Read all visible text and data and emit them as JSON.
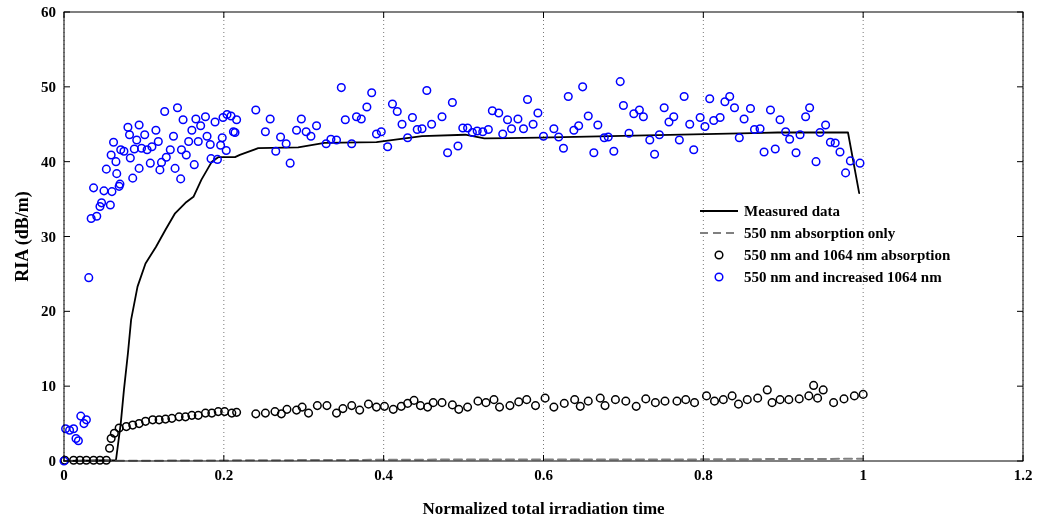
{
  "chart_data": {
    "type": "line",
    "xlabel": "Normalized total irradiation time",
    "ylabel": "RIA (dB/m)",
    "xlim": [
      0,
      1.2
    ],
    "xticks": [
      0,
      0.2,
      0.4,
      0.6,
      0.8,
      1,
      1.2
    ],
    "ylim": [
      0,
      60
    ],
    "yticks": [
      0,
      10,
      20,
      30,
      40,
      50,
      60
    ],
    "grid": "x",
    "legend": "right",
    "series": [
      {
        "name": "Measured data",
        "color": "#000000",
        "line_style": "solid",
        "marker": "none",
        "x": [
          0,
          0.065,
          0.071,
          0.075,
          0.08,
          0.084,
          0.092,
          0.102,
          0.115,
          0.127,
          0.139,
          0.152,
          0.162,
          0.172,
          0.185,
          0.193,
          0.214,
          0.22,
          0.243,
          0.293,
          0.326,
          0.391,
          0.448,
          0.502,
          0.526,
          0.595,
          0.893,
          0.981,
          0.995
        ],
        "values": [
          0,
          0.1,
          5,
          9.5,
          14.4,
          18.9,
          23.3,
          26.4,
          28.6,
          30.9,
          33.1,
          34.5,
          35.3,
          37.6,
          40,
          40.6,
          40.6,
          40.9,
          41.8,
          41.9,
          42.5,
          42.6,
          43.4,
          43.6,
          43.1,
          43.2,
          43.9,
          43.9,
          35.8
        ]
      },
      {
        "name": "550 nm absorption only",
        "type": "line",
        "color": "#808080",
        "line_style": "dashed",
        "marker": "none",
        "x": [
          0,
          0.25,
          0.5,
          0.75,
          1
        ],
        "values": [
          0,
          0.1,
          0.2,
          0.2,
          0.3
        ]
      },
      {
        "name": "550 nm and 1064 nm absorption",
        "type": "scatter",
        "color": "#000000",
        "marker": "circle",
        "x": [
          0.001,
          0.012,
          0.02,
          0.028,
          0.037,
          0.045,
          0.053,
          0.057,
          0.059,
          0.063,
          0.069,
          0.078,
          0.086,
          0.094,
          0.102,
          0.111,
          0.119,
          0.127,
          0.135,
          0.144,
          0.152,
          0.16,
          0.168,
          0.177,
          0.185,
          0.193,
          0.201,
          0.21,
          0.216,
          0.24,
          0.252,
          0.264,
          0.272,
          0.279,
          0.291,
          0.298,
          0.306,
          0.317,
          0.329,
          0.341,
          0.349,
          0.36,
          0.37,
          0.381,
          0.391,
          0.401,
          0.412,
          0.422,
          0.43,
          0.438,
          0.446,
          0.455,
          0.462,
          0.473,
          0.486,
          0.494,
          0.505,
          0.518,
          0.528,
          0.538,
          0.545,
          0.558,
          0.569,
          0.579,
          0.59,
          0.602,
          0.613,
          0.626,
          0.639,
          0.646,
          0.656,
          0.671,
          0.677,
          0.69,
          0.703,
          0.716,
          0.728,
          0.74,
          0.752,
          0.767,
          0.778,
          0.789,
          0.804,
          0.814,
          0.825,
          0.836,
          0.844,
          0.855,
          0.868,
          0.88,
          0.886,
          0.896,
          0.907,
          0.92,
          0.932,
          0.938,
          0.943,
          0.95,
          0.963,
          0.976,
          0.989,
          1
        ],
        "values": [
          0.1,
          0.1,
          0.1,
          0.1,
          0.1,
          0.1,
          0.1,
          1.7,
          3,
          3.7,
          4.4,
          4.6,
          4.8,
          5,
          5.3,
          5.5,
          5.5,
          5.6,
          5.7,
          5.9,
          5.9,
          6.1,
          6.1,
          6.4,
          6.4,
          6.6,
          6.6,
          6.4,
          6.5,
          6.3,
          6.4,
          6.6,
          6.3,
          6.9,
          6.8,
          7.2,
          6.4,
          7.4,
          7.4,
          6.4,
          7,
          7.4,
          6.8,
          7.6,
          7.2,
          7.3,
          6.9,
          7.3,
          7.7,
          8.1,
          7.4,
          7.2,
          7.8,
          7.8,
          7.5,
          6.9,
          7.2,
          8,
          7.8,
          8.2,
          7.2,
          7.4,
          7.9,
          8.2,
          7.4,
          8.4,
          7.2,
          7.7,
          8.2,
          7.3,
          8,
          8.4,
          7.4,
          8.2,
          8,
          7.3,
          8.3,
          7.8,
          8,
          8,
          8.2,
          7.8,
          8.7,
          8,
          8.2,
          8.7,
          7.6,
          8.2,
          8.4,
          9.5,
          7.8,
          8.2,
          8.2,
          8.3,
          8.7,
          10.1,
          8.4,
          9.5,
          7.8,
          8.3,
          8.7,
          8.9
        ]
      },
      {
        "name": "550 nm and increased 1064 nm",
        "type": "scatter",
        "color": "#0000ff",
        "marker": "circle",
        "x": [
          0,
          0.002,
          0.007,
          0.012,
          0.015,
          0.018,
          0.021,
          0.025,
          0.028,
          0.031,
          0.034,
          0.037,
          0.041,
          0.045,
          0.047,
          0.05,
          0.053,
          0.058,
          0.059,
          0.06,
          0.062,
          0.065,
          0.066,
          0.069,
          0.07,
          0.071,
          0.075,
          0.08,
          0.082,
          0.083,
          0.086,
          0.088,
          0.091,
          0.094,
          0.094,
          0.097,
          0.101,
          0.104,
          0.108,
          0.11,
          0.115,
          0.118,
          0.12,
          0.122,
          0.126,
          0.128,
          0.133,
          0.137,
          0.139,
          0.142,
          0.146,
          0.147,
          0.149,
          0.153,
          0.156,
          0.16,
          0.163,
          0.165,
          0.168,
          0.171,
          0.177,
          0.179,
          0.183,
          0.184,
          0.189,
          0.192,
          0.196,
          0.198,
          0.199,
          0.203,
          0.204,
          0.209,
          0.212,
          0.214,
          0.216,
          0.24,
          0.252,
          0.258,
          0.265,
          0.271,
          0.278,
          0.283,
          0.291,
          0.297,
          0.303,
          0.309,
          0.316,
          0.328,
          0.334,
          0.341,
          0.347,
          0.352,
          0.36,
          0.366,
          0.372,
          0.379,
          0.385,
          0.391,
          0.397,
          0.405,
          0.411,
          0.417,
          0.423,
          0.43,
          0.436,
          0.442,
          0.448,
          0.454,
          0.46,
          0.473,
          0.48,
          0.486,
          0.493,
          0.499,
          0.505,
          0.511,
          0.517,
          0.524,
          0.531,
          0.536,
          0.544,
          0.549,
          0.555,
          0.56,
          0.568,
          0.575,
          0.58,
          0.587,
          0.593,
          0.6,
          0.613,
          0.619,
          0.625,
          0.631,
          0.638,
          0.644,
          0.649,
          0.656,
          0.663,
          0.668,
          0.676,
          0.681,
          0.688,
          0.696,
          0.7,
          0.707,
          0.713,
          0.72,
          0.725,
          0.733,
          0.739,
          0.745,
          0.751,
          0.757,
          0.763,
          0.77,
          0.776,
          0.783,
          0.788,
          0.796,
          0.802,
          0.808,
          0.813,
          0.821,
          0.827,
          0.833,
          0.839,
          0.845,
          0.851,
          0.859,
          0.864,
          0.871,
          0.876,
          0.884,
          0.89,
          0.896,
          0.903,
          0.908,
          0.916,
          0.921,
          0.928,
          0.933,
          0.941,
          0.946,
          0.953,
          0.959,
          0.965,
          0.971,
          0.978,
          0.984,
          0.996
        ],
        "values": [
          0,
          4.3,
          4.1,
          4.3,
          3,
          2.7,
          6,
          5,
          5.5,
          24.5,
          32.4,
          36.5,
          32.7,
          34,
          34.5,
          36.1,
          39,
          34.2,
          40.9,
          36,
          42.6,
          40,
          38.4,
          36.7,
          37,
          41.6,
          41.4,
          44.6,
          43.6,
          40.5,
          37.8,
          41.7,
          42.9,
          44.9,
          39.1,
          41.8,
          43.6,
          41.6,
          39.8,
          42,
          44.2,
          42.7,
          38.9,
          39.9,
          46.7,
          40.6,
          41.6,
          43.4,
          39.1,
          47.2,
          37.7,
          41.6,
          45.6,
          40.9,
          42.7,
          44.2,
          39.6,
          45.7,
          42.7,
          44.8,
          46,
          43.4,
          42.3,
          40.4,
          45.3,
          40.3,
          42.2,
          43.2,
          45.9,
          41.5,
          46.3,
          46.1,
          44,
          43.9,
          45.6,
          46.9,
          44,
          45.7,
          41.4,
          43.3,
          42.4,
          39.8,
          44.2,
          45.7,
          44,
          43.4,
          44.8,
          42.4,
          43,
          42.9,
          49.9,
          45.6,
          42.4,
          46,
          45.7,
          47.3,
          49.2,
          43.7,
          44,
          42,
          47.7,
          46.7,
          45,
          43.2,
          45.9,
          44.3,
          44.4,
          49.5,
          45,
          46,
          41.2,
          47.9,
          42.1,
          44.5,
          44.5,
          43.9,
          44.1,
          44,
          44.3,
          46.8,
          46.5,
          43.7,
          45.6,
          44.4,
          45.7,
          44.4,
          48.3,
          45,
          46.5,
          43.4,
          44.4,
          43.3,
          41.8,
          48.7,
          44.2,
          44.8,
          50,
          46.1,
          41.2,
          44.9,
          43.2,
          43.3,
          41.4,
          50.7,
          47.5,
          43.8,
          46.4,
          46.9,
          46,
          42.9,
          41,
          43.6,
          47.2,
          45.3,
          46,
          42.9,
          48.7,
          45,
          41.6,
          45.9,
          44.7,
          48.4,
          45.5,
          45.9,
          48,
          48.7,
          47.2,
          43.2,
          45.7,
          47.1,
          44.3,
          44.4,
          41.3,
          46.9,
          41.7,
          45.6,
          44,
          43,
          41.2,
          43.6,
          46,
          47.2,
          40,
          43.9,
          44.9,
          42.6,
          42.5,
          41.3,
          38.5,
          40.1,
          39.8
        ]
      }
    ]
  }
}
